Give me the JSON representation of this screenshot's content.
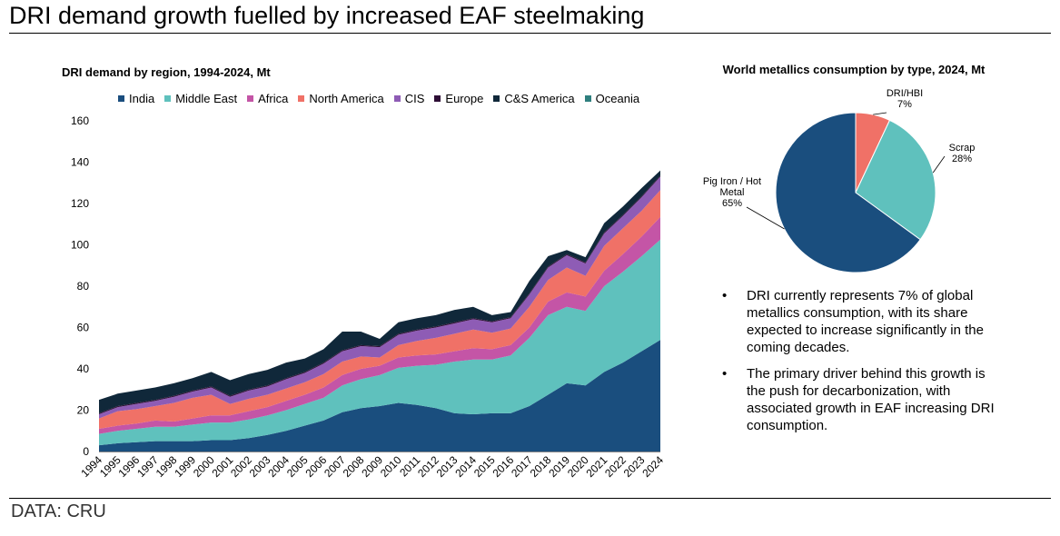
{
  "page": {
    "title": "DRI demand growth fuelled by increased EAF steelmaking",
    "source": "DATA: CRU"
  },
  "chart_data": [
    {
      "type": "area",
      "stacked": true,
      "title": "DRI demand by region, 1994-2024, Mt",
      "xlabel": "",
      "ylabel": "",
      "ylim": [
        0,
        160
      ],
      "yticks": [
        0,
        20,
        40,
        60,
        80,
        100,
        120,
        140,
        160
      ],
      "legend_position": "top",
      "grid": false,
      "x": [
        "1994",
        "1995",
        "1996",
        "1997",
        "1998",
        "1999",
        "2000",
        "2001",
        "2002",
        "2003",
        "2004",
        "2005",
        "2006",
        "2007",
        "2008",
        "2009",
        "2010",
        "2011",
        "2012",
        "2013",
        "2014",
        "2015",
        "2016",
        "2017",
        "2018",
        "2019",
        "2020",
        "2021",
        "2022",
        "2023",
        "2024"
      ],
      "series": [
        {
          "name": "India",
          "color": "#1a4e7e",
          "values": [
            3,
            4,
            4.5,
            5,
            5,
            5,
            5.5,
            5.5,
            6.5,
            8,
            10,
            12.5,
            15,
            19,
            21,
            22,
            23.5,
            22.5,
            21,
            18.5,
            18,
            18.5,
            18.5,
            22,
            27.5,
            33,
            32,
            38.5,
            43,
            48.5,
            54
          ]
        },
        {
          "name": "Middle East",
          "color": "#5fc1bd",
          "values": [
            5.5,
            6,
            6.5,
            7,
            7,
            8,
            8.5,
            8.5,
            9,
            9.5,
            10,
            10.5,
            11,
            13,
            14,
            15,
            17,
            19,
            21,
            25,
            26.5,
            26,
            28,
            33,
            38.5,
            37,
            36,
            41.5,
            44,
            46,
            48.5
          ]
        },
        {
          "name": "Africa",
          "color": "#c455a6",
          "values": [
            2.5,
            2.5,
            2.5,
            3,
            2.5,
            3,
            3.5,
            3.5,
            4,
            4,
            4.5,
            4.5,
            5,
            5,
            5,
            4.5,
            5,
            5,
            5,
            5,
            5.5,
            5,
            5,
            5,
            6.5,
            7,
            7,
            7.5,
            8.5,
            9.5,
            11
          ]
        },
        {
          "name": "North America",
          "color": "#f07167",
          "values": [
            5,
            7,
            7,
            7,
            9,
            10,
            10,
            5.5,
            6,
            6,
            6,
            6,
            6.5,
            6.5,
            6,
            4,
            6,
            7,
            8,
            8.5,
            9,
            8,
            8,
            10,
            10.5,
            12,
            10,
            12,
            12.5,
            12.5,
            13
          ]
        },
        {
          "name": "CIS",
          "color": "#8e5cb5",
          "values": [
            2,
            2,
            2.5,
            2.5,
            3,
            3,
            3.5,
            3.5,
            4,
            4,
            4.5,
            4.5,
            5,
            5,
            5,
            5,
            5,
            5,
            5,
            5,
            5,
            5,
            5,
            6,
            6,
            6,
            6,
            6,
            6,
            6.5,
            6.5
          ]
        },
        {
          "name": "Europe",
          "color": "#2e0e35",
          "values": [
            0.5,
            0.5,
            0.5,
            0.5,
            0.5,
            0.5,
            0.5,
            0.5,
            0.5,
            0.5,
            0.5,
            0.5,
            0.5,
            0.5,
            0.5,
            0.5,
            0.5,
            0.5,
            0.5,
            0.5,
            0.5,
            0.5,
            0.5,
            0.5,
            0.5,
            0.5,
            0.5,
            0.5,
            0.5,
            0.5,
            0.5
          ]
        },
        {
          "name": "C&S America",
          "color": "#10283a",
          "values": [
            6.5,
            6,
            6,
            6,
            6,
            6,
            7,
            7.5,
            7.5,
            7.5,
            7.5,
            6.5,
            6.5,
            9,
            6.5,
            3.5,
            5.5,
            5.5,
            5.5,
            6,
            5.5,
            3,
            2.5,
            6,
            5,
            2,
            2.5,
            4.5,
            4,
            4,
            2.5
          ]
        },
        {
          "name": "Oceania",
          "color": "#2f7f7e",
          "values": [
            0,
            0,
            0,
            0,
            0,
            0,
            0,
            0,
            0,
            0,
            0,
            0,
            0,
            0,
            0,
            0,
            0,
            0,
            0,
            0,
            0,
            0,
            0,
            0,
            0,
            0,
            0,
            0,
            0,
            0,
            0
          ]
        }
      ]
    },
    {
      "type": "pie",
      "title": "World metallics consumption by type, 2024, Mt",
      "slices": [
        {
          "label": "DRI/HBI",
          "value": 7,
          "display": "7%",
          "color": "#f07167"
        },
        {
          "label": "Scrap",
          "value": 28,
          "display": "28%",
          "color": "#5fc1bd"
        },
        {
          "label": "Pig Iron / Hot Metal",
          "value": 65,
          "display": "65%",
          "color": "#1a4e7e"
        }
      ]
    }
  ],
  "notes": {
    "bullets": [
      "DRI currently represents 7% of global metallics consumption, with its share expected to increase significantly in the coming decades.",
      "The primary driver behind this growth is the push for decarbonization, with associated growth in EAF increasing DRI consumption."
    ]
  }
}
